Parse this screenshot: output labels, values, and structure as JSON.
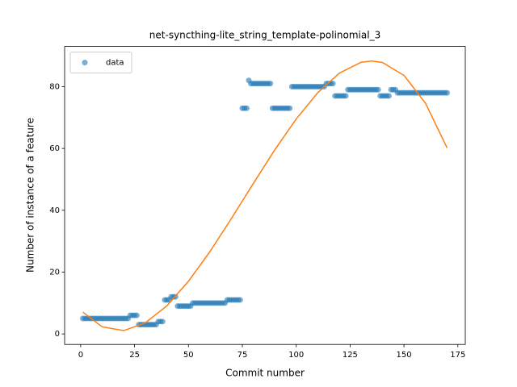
{
  "chart_data": {
    "type": "scatter",
    "title": "net-syncthing-lite_string_template-polinomial_3",
    "xlabel": "Commit number",
    "ylabel": "Number of instance of a feature",
    "xlim": [
      -7.45,
      178.45
    ],
    "ylim": [
      -3.4,
      93
    ],
    "xticks": [
      0,
      25,
      50,
      75,
      100,
      125,
      150,
      175
    ],
    "yticks": [
      0,
      20,
      40,
      60,
      80
    ],
    "legend": "upper left",
    "series": [
      {
        "name": "data",
        "type": "scatter",
        "color": "#1f77b4",
        "x": [
          1,
          2,
          3,
          4,
          5,
          6,
          7,
          8,
          9,
          10,
          11,
          12,
          13,
          14,
          15,
          16,
          17,
          18,
          19,
          20,
          21,
          22,
          23,
          24,
          25,
          26,
          27,
          28,
          29,
          30,
          31,
          32,
          33,
          34,
          35,
          36,
          37,
          38,
          39,
          40,
          41,
          42,
          43,
          44,
          45,
          46,
          47,
          48,
          49,
          50,
          51,
          52,
          53,
          54,
          55,
          56,
          57,
          58,
          59,
          60,
          61,
          62,
          63,
          64,
          65,
          66,
          67,
          68,
          69,
          70,
          71,
          72,
          73,
          74,
          75,
          76,
          77,
          78,
          79,
          80,
          81,
          82,
          83,
          84,
          85,
          86,
          87,
          88,
          89,
          90,
          91,
          92,
          93,
          94,
          95,
          96,
          97,
          98,
          99,
          100,
          101,
          102,
          103,
          104,
          105,
          106,
          107,
          108,
          109,
          110,
          111,
          112,
          113,
          114,
          115,
          116,
          117,
          118,
          119,
          120,
          121,
          122,
          123,
          124,
          125,
          126,
          127,
          128,
          129,
          130,
          131,
          132,
          133,
          134,
          135,
          136,
          137,
          138,
          139,
          140,
          141,
          142,
          143,
          144,
          145,
          146,
          147,
          148,
          149,
          150,
          151,
          152,
          153,
          154,
          155,
          156,
          157,
          158,
          159,
          160,
          161,
          162,
          163,
          164,
          165,
          166,
          167,
          168,
          169,
          170
        ],
        "values": [
          5,
          5,
          5,
          5,
          5,
          5,
          5,
          5,
          5,
          5,
          5,
          5,
          5,
          5,
          5,
          5,
          5,
          5,
          5,
          5,
          5,
          5,
          6,
          6,
          6,
          6,
          3,
          3,
          3,
          3,
          3,
          3,
          3,
          3,
          3,
          4,
          4,
          4,
          11,
          11,
          11,
          12,
          12,
          12,
          9,
          9,
          9,
          9,
          9,
          9,
          9,
          10,
          10,
          10,
          10,
          10,
          10,
          10,
          10,
          10,
          10,
          10,
          10,
          10,
          10,
          10,
          10,
          11,
          11,
          11,
          11,
          11,
          11,
          11,
          73,
          73,
          73,
          82,
          81,
          81,
          81,
          81,
          81,
          81,
          81,
          81,
          81,
          81,
          73,
          73,
          73,
          73,
          73,
          73,
          73,
          73,
          73,
          80,
          80,
          80,
          80,
          80,
          80,
          80,
          80,
          80,
          80,
          80,
          80,
          80,
          80,
          80,
          80,
          81,
          81,
          81,
          81,
          77,
          77,
          77,
          77,
          77,
          77,
          79,
          79,
          79,
          79,
          79,
          79,
          79,
          79,
          79,
          79,
          79,
          79,
          79,
          79,
          79,
          77,
          77,
          77,
          77,
          77,
          79,
          79,
          79,
          78,
          78,
          78,
          78,
          78,
          78,
          78,
          78,
          78,
          78,
          78,
          78,
          78,
          78,
          78,
          78,
          78,
          78,
          78,
          78,
          78,
          78,
          78,
          78
        ]
      },
      {
        "type": "line",
        "color": "#ff7f0e",
        "x": [
          1,
          10,
          20,
          30,
          40,
          50,
          60,
          70,
          80,
          90,
          100,
          110,
          120,
          130,
          135,
          140,
          150,
          160,
          170
        ],
        "values": [
          7.07,
          2.28,
          1.08,
          3.57,
          9.1,
          17.02,
          26.67,
          37.41,
          48.57,
          59.49,
          69.54,
          78.05,
          84.37,
          87.84,
          88.3,
          87.81,
          83.63,
          74.64,
          60.19
        ]
      }
    ]
  }
}
